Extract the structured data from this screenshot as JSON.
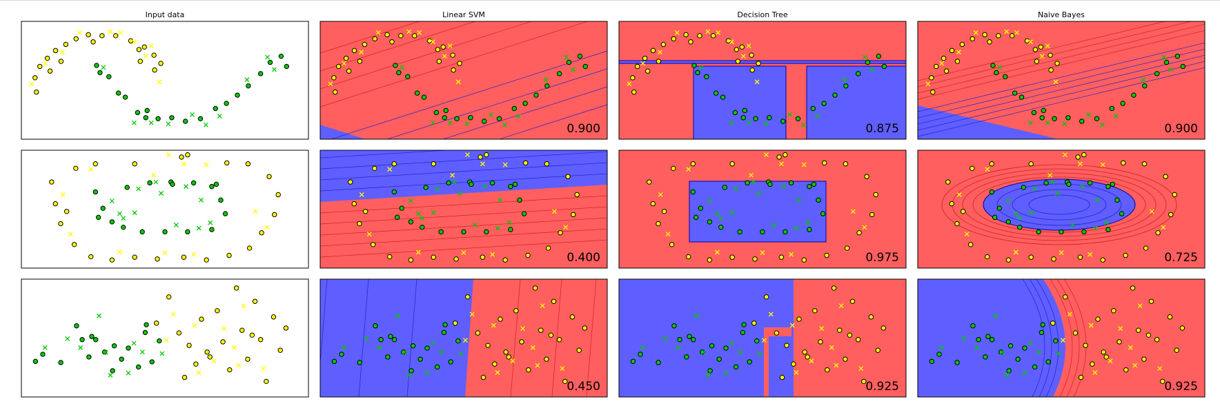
{
  "columns": [
    "Input data",
    "Linear SVM",
    "Decision Tree",
    "Naive Bayes"
  ],
  "colors": {
    "class_a": "#ffff00",
    "class_b": "#00c800",
    "region_a": "#ff5f5f",
    "region_b": "#5f5fff",
    "boundary": "#0000aa"
  },
  "chart_data": [
    {
      "type": "scatter",
      "dataset": "moons",
      "classes": [
        "yellow",
        "green"
      ],
      "xlim": [
        -1.6,
        2.6
      ],
      "ylim": [
        -0.9,
        1.4
      ],
      "scores": {
        "Linear SVM": "0.900",
        "Decision Tree": "0.875",
        "Naive Bayes": "0.900"
      },
      "train": {
        "yellow": [
          [
            -1.4,
            0.3
          ],
          [
            -1.33,
            0.52
          ],
          [
            -1.22,
            0.68
          ],
          [
            -1.1,
            0.83
          ],
          [
            -0.95,
            0.95
          ],
          [
            -0.8,
            1.06
          ],
          [
            -0.62,
            1.14
          ],
          [
            -0.42,
            1.12
          ],
          [
            -0.22,
            1.12
          ],
          [
            0.0,
            1.02
          ],
          [
            0.2,
            0.9
          ],
          [
            0.34,
            0.74
          ],
          [
            0.44,
            0.58
          ],
          [
            -1.38,
            0.02
          ],
          [
            -1.18,
            0.43
          ],
          [
            -1.02,
            0.62
          ],
          [
            0.14,
            0.62
          ],
          [
            0.12,
            0.85
          ],
          [
            -0.55,
            1.0
          ],
          [
            0.35,
            0.45
          ]
        ],
        "green": [
          [
            -0.5,
            0.54
          ],
          [
            -0.45,
            0.4
          ],
          [
            -0.32,
            0.32
          ],
          [
            -0.18,
            0.0
          ],
          [
            -0.08,
            -0.08
          ],
          [
            0.1,
            -0.38
          ],
          [
            0.22,
            -0.48
          ],
          [
            0.4,
            -0.5
          ],
          [
            0.6,
            -0.48
          ],
          [
            0.8,
            -0.55
          ],
          [
            1.02,
            -0.5
          ],
          [
            1.24,
            -0.3
          ],
          [
            1.4,
            -0.2
          ],
          [
            1.56,
            -0.04
          ],
          [
            1.72,
            0.14
          ],
          [
            1.9,
            0.38
          ],
          [
            2.04,
            0.6
          ],
          [
            2.2,
            0.72
          ],
          [
            2.28,
            0.52
          ],
          [
            0.24,
            -0.34
          ]
        ]
      },
      "test": {
        "yellow": [
          [
            -1.25,
            0.58
          ],
          [
            -1.0,
            0.8
          ],
          [
            -0.75,
            1.18
          ],
          [
            -0.3,
            1.2
          ],
          [
            0.05,
            1.0
          ],
          [
            0.22,
            0.72
          ],
          [
            0.42,
            0.22
          ],
          [
            -1.45,
            0.18
          ],
          [
            -0.15,
            1.18
          ],
          [
            0.3,
            0.92
          ]
        ],
        "green": [
          [
            -0.4,
            0.5
          ],
          [
            0.05,
            -0.58
          ],
          [
            0.3,
            -0.58
          ],
          [
            0.55,
            -0.6
          ],
          [
            0.9,
            -0.42
          ],
          [
            1.1,
            -0.62
          ],
          [
            1.3,
            -0.45
          ],
          [
            1.7,
            0.26
          ],
          [
            2.0,
            0.7
          ],
          [
            2.1,
            0.46
          ]
        ]
      }
    },
    {
      "type": "scatter",
      "dataset": "circles",
      "classes": [
        "yellow",
        "green"
      ],
      "xlim": [
        -1.9,
        1.9
      ],
      "ylim": [
        -1.3,
        1.3
      ],
      "scores": {
        "Linear SVM": "0.400",
        "Decision Tree": "0.975",
        "Naive Bayes": "0.725"
      },
      "train": {
        "yellow": [
          [
            -1.5,
            0.6
          ],
          [
            -1.45,
            0.12
          ],
          [
            -1.38,
            -0.32
          ],
          [
            -1.2,
            -0.78
          ],
          [
            -0.98,
            -1.05
          ],
          [
            -0.7,
            -1.12
          ],
          [
            -0.4,
            -1.06
          ],
          [
            -0.1,
            -1.1
          ],
          [
            0.25,
            -1.06
          ],
          [
            0.55,
            -1.12
          ],
          [
            0.85,
            -1.02
          ],
          [
            1.12,
            -0.86
          ],
          [
            1.28,
            -0.52
          ],
          [
            1.45,
            -0.12
          ],
          [
            1.5,
            0.32
          ],
          [
            1.38,
            0.72
          ],
          [
            1.1,
            1.0
          ],
          [
            0.82,
            1.02
          ],
          [
            0.3,
            1.2
          ],
          [
            0.22,
            1.15
          ],
          [
            -0.4,
            1.0
          ],
          [
            -0.92,
            1.0
          ],
          [
            -1.18,
            0.9
          ],
          [
            -1.3,
            -0.05
          ]
        ],
        "green": [
          [
            -0.92,
            0.38
          ],
          [
            -0.82,
            0.02
          ],
          [
            -0.7,
            -0.28
          ],
          [
            -0.5,
            0.48
          ],
          [
            -0.2,
            0.58
          ],
          [
            0.08,
            0.6
          ],
          [
            0.38,
            0.58
          ],
          [
            0.62,
            0.5
          ],
          [
            0.74,
            0.2
          ],
          [
            0.8,
            -0.1
          ],
          [
            0.62,
            -0.45
          ],
          [
            0.3,
            -0.5
          ],
          [
            0.0,
            -0.5
          ],
          [
            -0.3,
            -0.5
          ],
          [
            -0.55,
            -0.4
          ],
          [
            -0.88,
            -0.18
          ],
          [
            0.1,
            0.55
          ],
          [
            0.68,
            0.55
          ]
        ]
      },
      "test": {
        "yellow": [
          [
            -1.35,
            0.32
          ],
          [
            -0.98,
            0.88
          ],
          [
            -0.15,
            0.75
          ],
          [
            0.25,
            1.0
          ],
          [
            0.55,
            0.98
          ],
          [
            1.35,
            -0.4
          ],
          [
            -0.6,
            -0.95
          ],
          [
            0.0,
            -0.96
          ],
          [
            0.38,
            -1.0
          ],
          [
            1.2,
            -0.05
          ],
          [
            -1.25,
            -0.55
          ],
          [
            0.05,
            1.2
          ]
        ],
        "green": [
          [
            -0.7,
            0.18
          ],
          [
            -0.6,
            -0.1
          ],
          [
            -0.35,
            0.45
          ],
          [
            -0.05,
            0.35
          ],
          [
            0.28,
            0.5
          ],
          [
            0.48,
            0.2
          ],
          [
            0.6,
            -0.3
          ],
          [
            0.15,
            -0.35
          ],
          [
            -0.4,
            -0.08
          ],
          [
            -0.55,
            -0.2
          ],
          [
            -0.12,
            0.6
          ],
          [
            0.45,
            -0.42
          ]
        ]
      }
    },
    {
      "type": "scatter",
      "dataset": "linearly_separable",
      "classes": [
        "yellow",
        "green"
      ],
      "xlim": [
        -2.2,
        2.9
      ],
      "ylim": [
        -1.6,
        3.7
      ],
      "scores": {
        "Linear SVM": "0.450",
        "Decision Tree": "0.925",
        "Naive Bayes": "0.925"
      },
      "train": {
        "yellow": [
          [
            0.2,
            1.72
          ],
          [
            0.42,
            2.9
          ],
          [
            0.6,
            1.28
          ],
          [
            0.78,
            0.72
          ],
          [
            0.9,
            -0.12
          ],
          [
            1.0,
            1.9
          ],
          [
            1.1,
            0.42
          ],
          [
            1.28,
            2.28
          ],
          [
            1.38,
            0.88
          ],
          [
            1.5,
            -0.38
          ],
          [
            1.62,
            3.3
          ],
          [
            1.72,
            1.4
          ],
          [
            1.82,
            0.1
          ],
          [
            1.95,
            2.7
          ],
          [
            2.05,
            0.98
          ],
          [
            2.15,
            -0.9
          ],
          [
            2.28,
            2.0
          ],
          [
            2.4,
            0.5
          ],
          [
            2.5,
            1.5
          ],
          [
            0.7,
            -0.72
          ],
          [
            1.15,
            0.2
          ],
          [
            1.9,
            1.18
          ]
        ],
        "green": [
          [
            -1.95,
            0.0
          ],
          [
            -1.82,
            0.32
          ],
          [
            -1.5,
            -0.05
          ],
          [
            -1.22,
            1.6
          ],
          [
            -1.12,
            0.98
          ],
          [
            -1.0,
            0.2
          ],
          [
            -0.88,
            0.98
          ],
          [
            -0.72,
            0.42
          ],
          [
            -0.58,
            -0.42
          ],
          [
            -0.42,
            0.1
          ],
          [
            -0.3,
            0.6
          ],
          [
            -0.12,
            -0.25
          ],
          [
            0.0,
            1.3
          ],
          [
            0.12,
            -0.02
          ],
          [
            0.25,
            0.92
          ],
          [
            -0.55,
            0.7
          ],
          [
            -0.95,
            1.12
          ],
          [
            0.02,
            1.65
          ]
        ]
      },
      "test": {
        "yellow": [
          [
            0.5,
            2.12
          ],
          [
            0.88,
            1.62
          ],
          [
            1.22,
            0.02
          ],
          [
            1.4,
            1.48
          ],
          [
            1.58,
            0.62
          ],
          [
            1.75,
            2.5
          ],
          [
            2.1,
            -0.32
          ],
          [
            0.38,
            0.95
          ],
          [
            0.95,
            -0.5
          ],
          [
            1.66,
            -0.18
          ]
        ],
        "green": [
          [
            -1.78,
            0.62
          ],
          [
            -1.38,
            1.02
          ],
          [
            -0.82,
            2.05
          ],
          [
            -0.62,
            -0.62
          ],
          [
            -0.3,
            -0.52
          ],
          [
            -0.05,
            0.42
          ],
          [
            0.3,
            0.35
          ],
          [
            -1.15,
            0.62
          ],
          [
            -0.7,
            0.4
          ],
          [
            -0.2,
            0.82
          ]
        ]
      }
    }
  ]
}
